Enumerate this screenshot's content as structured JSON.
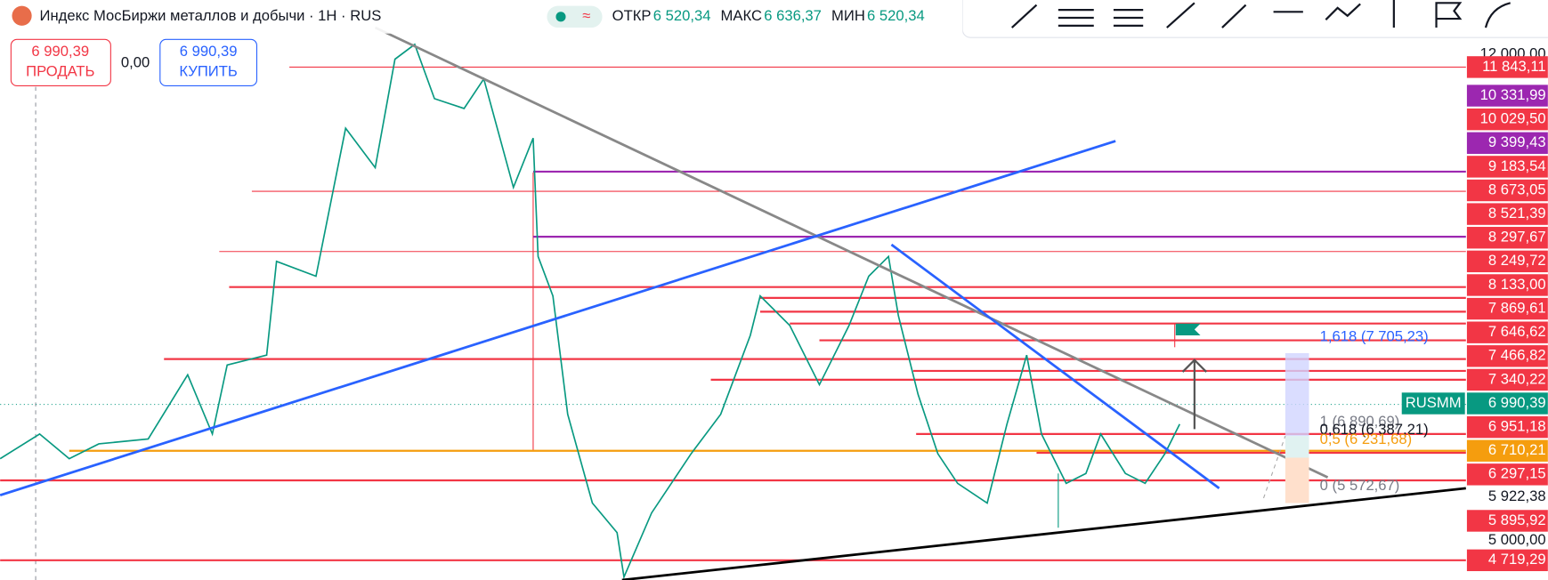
{
  "header": {
    "title": "Индекс МосБиржи металлов и добычи · 1H · RUS",
    "badge": "≈",
    "stats": [
      {
        "label": "ОТКР",
        "value": "6 520,34"
      },
      {
        "label": "МАКС",
        "value": "6 636,37"
      },
      {
        "label": "МИН",
        "value": "6 520,34"
      }
    ]
  },
  "trade": {
    "sell": {
      "price": "6 990,39",
      "label": "ПРОДАТЬ"
    },
    "spread": "0,00",
    "buy": {
      "price": "6 990,39",
      "label": "КУПИТЬ"
    }
  },
  "price_axis": {
    "symbol_tag": "RUSMM",
    "labels": [
      {
        "text": "12 000,00",
        "color": null
      },
      {
        "text": "11 843,11",
        "color": "#f23645"
      },
      {
        "text": "10 331,99",
        "color": "#9c27b0"
      },
      {
        "text": "10 029,50",
        "color": "#f23645"
      },
      {
        "text": "9 399,43",
        "color": "#9c27b0"
      },
      {
        "text": "9 183,54",
        "color": "#f23645"
      },
      {
        "text": "8 673,05",
        "color": "#f23645"
      },
      {
        "text": "8 521,39",
        "color": "#f23645"
      },
      {
        "text": "8 297,67",
        "color": "#f23645"
      },
      {
        "text": "8 249,72",
        "color": "#f23645"
      },
      {
        "text": "8 133,00",
        "color": "#f23645"
      },
      {
        "text": "7 869,61",
        "color": "#f23645"
      },
      {
        "text": "7 646,62",
        "color": "#f23645"
      },
      {
        "text": "7 466,82",
        "color": "#f23645"
      },
      {
        "text": "7 340,22",
        "color": "#f23645"
      },
      {
        "text": "6 990,39",
        "color": "#089981"
      },
      {
        "text": "6 951,18",
        "color": "#f23645"
      },
      {
        "text": "6 710,21",
        "color": "#f59d0e"
      },
      {
        "text": "6 297,15",
        "color": "#f23645"
      },
      {
        "text": "5 922,38",
        "color": null
      },
      {
        "text": "5 895,92",
        "color": "#f23645"
      },
      {
        "text": "5 000,00",
        "color": null
      },
      {
        "text": "4 719,29",
        "color": "#f23645"
      }
    ]
  },
  "fib_levels": [
    {
      "text": "1,618 (7 705,23)",
      "color": "#2962ff"
    },
    {
      "text": "1 (6 890,69)",
      "color": "#787b86"
    },
    {
      "text": "0,618 (6 387,21)",
      "color": "#131722"
    },
    {
      "text": "0,5 (6 231,68)",
      "color": "#f59d0e"
    },
    {
      "text": "0 (5 572,67)",
      "color": "#787b86"
    }
  ]
}
